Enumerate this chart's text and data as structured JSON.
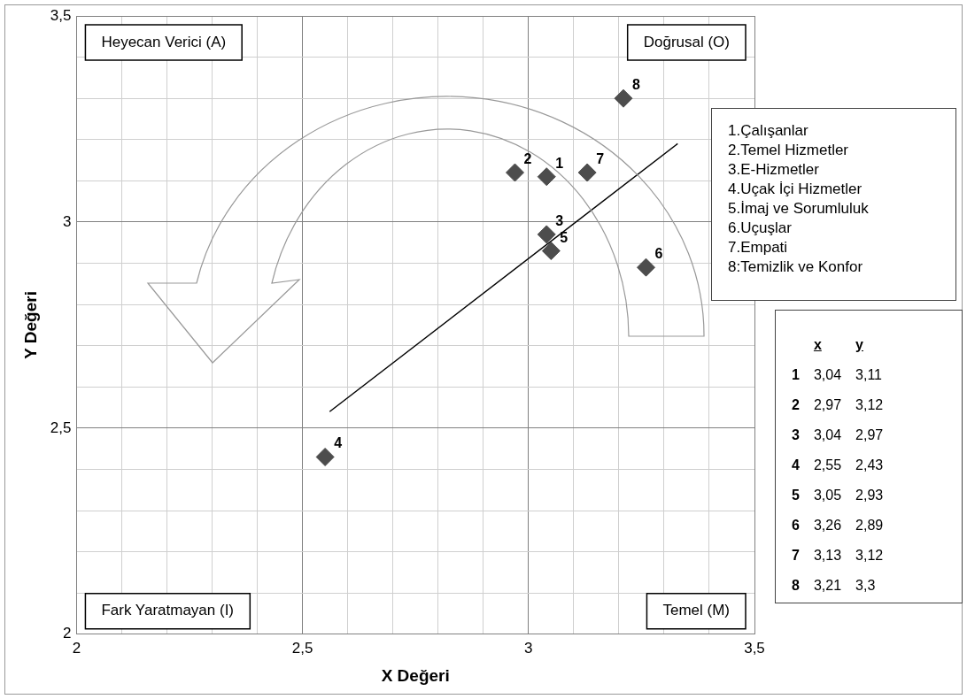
{
  "chart_data": {
    "type": "scatter",
    "xlabel": "X Değeri",
    "ylabel": "Y Değeri",
    "xlim": [
      2,
      3.5
    ],
    "ylim": [
      2,
      3.5
    ],
    "xticks": [
      2,
      {
        "value": 2.1,
        "label": null
      },
      {
        "value": 2.2,
        "label": null
      },
      {
        "value": 2.3,
        "label": null
      },
      {
        "value": 2.4,
        "label": null
      },
      {
        "value": 2.5,
        "label": "2,5"
      },
      {
        "value": 2.6,
        "label": null
      },
      {
        "value": 2.7,
        "label": null
      },
      {
        "value": 2.8,
        "label": null
      },
      {
        "value": 2.9,
        "label": null
      },
      3,
      {
        "value": 3.1,
        "label": null
      },
      {
        "value": 3.2,
        "label": null
      },
      {
        "value": 3.3,
        "label": null
      },
      {
        "value": 3.4,
        "label": null
      },
      {
        "value": 3.5,
        "label": "3,5"
      }
    ],
    "yticks": [
      2,
      {
        "value": 2.1,
        "label": null
      },
      {
        "value": 2.2,
        "label": null
      },
      {
        "value": 2.3,
        "label": null
      },
      {
        "value": 2.4,
        "label": null
      },
      {
        "value": 2.5,
        "label": "2,5"
      },
      {
        "value": 2.6,
        "label": null
      },
      {
        "value": 2.7,
        "label": null
      },
      {
        "value": 2.8,
        "label": null
      },
      {
        "value": 2.9,
        "label": null
      },
      3,
      {
        "value": 3.1,
        "label": null
      },
      {
        "value": 3.2,
        "label": null
      },
      {
        "value": 3.3,
        "label": null
      },
      {
        "value": 3.4,
        "label": null
      },
      {
        "value": 3.5,
        "label": "3,5"
      }
    ],
    "grid": true,
    "marker": "diamond",
    "series": [
      {
        "color": "#4d4d4d",
        "x": [
          3.04,
          2.97,
          3.04,
          2.55,
          3.05,
          3.26,
          3.13,
          3.21
        ],
        "values": [
          3.11,
          3.12,
          2.97,
          2.43,
          2.93,
          2.89,
          3.12,
          3.3
        ]
      },
      {
        "type": "line",
        "marker": "none",
        "color": "#000000",
        "x": [
          2.56,
          3.33
        ],
        "values": [
          2.54,
          3.19
        ]
      }
    ],
    "annotations": [
      "Heyecan Verici (A)",
      "Doğrusal (O)",
      "Fark Yaratmayan (I)",
      "Temel (M)",
      "1.Çalışanlar",
      "2.Temel Hizmetler",
      "3.E-Hizmetler",
      "4.Uçak İçi Hizmetler",
      "5.İmaj ve Sorumluluk",
      "6.Uçuşlar",
      "7.Empati",
      "8:Temizlik ve Konfor",
      {
        "text": "1",
        "x": 3.04,
        "y": 3.11
      },
      {
        "text": "2",
        "x": 2.97,
        "y": 3.12
      },
      {
        "text": "3",
        "x": 3.04,
        "y": 2.97
      },
      {
        "text": "4",
        "x": 2.55,
        "y": 2.43
      },
      {
        "text": "5",
        "x": 3.05,
        "y": 2.93
      },
      {
        "text": "6",
        "x": 3.26,
        "y": 2.89
      },
      {
        "text": "7",
        "x": 3.13,
        "y": 3.12
      },
      {
        "text": "8",
        "x": 3.21,
        "y": 3.3
      },
      "x",
      "y",
      "1",
      "3,04",
      "3,11",
      "2",
      "2,97",
      "3,12",
      "3",
      "3,04",
      "2,97",
      "4",
      "2,55",
      "2,43",
      "5",
      "3,05",
      "2,93",
      "6",
      "3,26",
      "2,89",
      "7",
      "3,13",
      "3,12",
      "8",
      "3,21",
      "3,3"
    ]
  }
}
